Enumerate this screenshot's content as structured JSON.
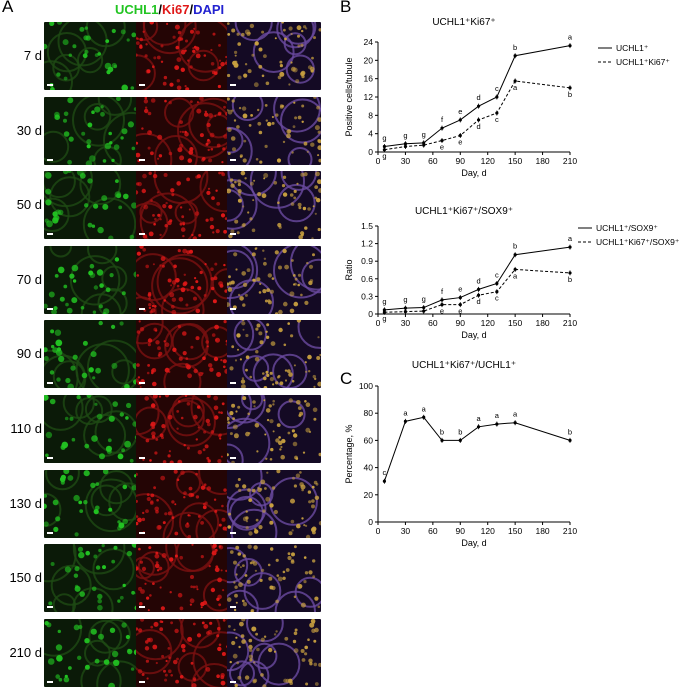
{
  "panels": {
    "A": "A",
    "B": "B",
    "C": "C"
  },
  "stain_header": {
    "uchl1": "UCHL1",
    "slash1": "/",
    "ki67": "Ki67",
    "slash2": "/",
    "dapi": "DAPI"
  },
  "colors": {
    "uchl1": "#22c422",
    "ki67": "#e01818",
    "dapi": "#2222d0"
  },
  "micrograph_rows": [
    "7 d",
    "30 d",
    "50 d",
    "70 d",
    "90 d",
    "110 d",
    "130 d",
    "150 d",
    "210 d"
  ],
  "chart_data": [
    {
      "type": "line",
      "title": "UCHL1⁺Ki67⁺",
      "xlabel": "Day, d",
      "ylabel": "Positive cells/tubule",
      "xlim": [
        0,
        210
      ],
      "ylim": [
        0,
        24
      ],
      "xticks": [
        "0",
        "30",
        "60",
        "90",
        "120",
        "150",
        "180",
        "210"
      ],
      "yticks": [
        "0",
        "4",
        "8",
        "12",
        "16",
        "20",
        "24"
      ],
      "legend_position": "top-right",
      "x": [
        7,
        30,
        50,
        70,
        90,
        110,
        130,
        150,
        210
      ],
      "series": [
        {
          "name": "UCHL1⁺",
          "style": "solid",
          "values": [
            1.2,
            1.8,
            2.0,
            5.2,
            7.0,
            10.0,
            12.0,
            21.0,
            23.2
          ],
          "letters": [
            "g",
            "g",
            "g",
            "f",
            "e",
            "d",
            "c",
            "b",
            "a"
          ]
        },
        {
          "name": "UCHL1⁺Ki67⁺",
          "style": "dashed",
          "values": [
            0.5,
            1.2,
            1.5,
            2.5,
            3.6,
            7.0,
            8.5,
            15.5,
            14.0
          ],
          "letters": [
            "g",
            "",
            "",
            "e",
            "e",
            "d",
            "c",
            "a",
            "b"
          ]
        }
      ]
    },
    {
      "type": "line",
      "title": "UCHL1⁺Ki67⁺/SOX9⁺",
      "xlabel": "Day, d",
      "ylabel": "Ratio",
      "xlim": [
        0,
        210
      ],
      "ylim": [
        0,
        1.5
      ],
      "xticks": [
        "0",
        "30",
        "60",
        "90",
        "120",
        "150",
        "180",
        "210"
      ],
      "yticks": [
        "0",
        "0.3",
        "0.6",
        "0.9",
        "1.2",
        "1.5"
      ],
      "legend_position": "top-right",
      "x": [
        7,
        30,
        50,
        70,
        90,
        110,
        130,
        150,
        210
      ],
      "series": [
        {
          "name": "UCHL1⁺/SOX9⁺",
          "style": "solid",
          "values": [
            0.07,
            0.1,
            0.11,
            0.24,
            0.28,
            0.42,
            0.52,
            1.01,
            1.14
          ],
          "letters": [
            "g",
            "g",
            "g",
            "f",
            "e",
            "d",
            "c",
            "b",
            "a"
          ]
        },
        {
          "name": "UCHL1⁺Ki67⁺/SOX9⁺",
          "style": "dashed",
          "values": [
            0.03,
            0.04,
            0.05,
            0.16,
            0.16,
            0.32,
            0.38,
            0.76,
            0.7
          ],
          "letters": [
            "g",
            "",
            "",
            "e",
            "e",
            "d",
            "c",
            "a",
            "b"
          ]
        }
      ]
    },
    {
      "type": "line",
      "title": "UCHL1⁺Ki67⁺/UCHL1⁺",
      "xlabel": "Day, d",
      "ylabel": "Percentage, %",
      "xlim": [
        0,
        210
      ],
      "ylim": [
        0,
        100
      ],
      "xticks": [
        "0",
        "30",
        "60",
        "90",
        "120",
        "150",
        "180",
        "210"
      ],
      "yticks": [
        "0",
        "20",
        "40",
        "60",
        "80",
        "100"
      ],
      "x": [
        7,
        30,
        50,
        70,
        90,
        110,
        130,
        150,
        210
      ],
      "series": [
        {
          "name": "",
          "style": "solid",
          "values": [
            30,
            74,
            77,
            60,
            60,
            70,
            72,
            73,
            60
          ],
          "letters": [
            "c",
            "a",
            "a",
            "b",
            "b",
            "a",
            "a",
            "a",
            "b"
          ]
        }
      ]
    }
  ]
}
